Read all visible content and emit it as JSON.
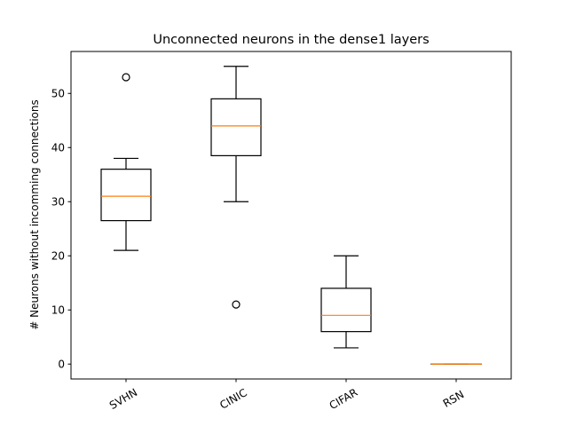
{
  "chart_data": {
    "type": "box",
    "title": "Unconnected neurons in the dense1 layers",
    "xlabel": "",
    "ylabel": "# Neurons without incomming connections",
    "categories": [
      "SVHN",
      "CINIC",
      "CIFAR",
      "RSN"
    ],
    "ylim": [
      -2.75,
      57.75
    ],
    "yticks": [
      0,
      10,
      20,
      30,
      40,
      50
    ],
    "grid": false,
    "boxes": [
      {
        "label": "SVHN",
        "whisker_low": 21,
        "q1": 26.5,
        "median": 31,
        "q3": 36,
        "whisker_high": 38,
        "outliers": [
          53
        ]
      },
      {
        "label": "CINIC",
        "whisker_low": 30,
        "q1": 38.5,
        "median": 44,
        "q3": 49,
        "whisker_high": 55,
        "outliers": [
          11
        ]
      },
      {
        "label": "CIFAR",
        "whisker_low": 3,
        "q1": 6,
        "median": 9,
        "q3": 14,
        "whisker_high": 20,
        "outliers": []
      },
      {
        "label": "RSN",
        "whisker_low": 0,
        "q1": 0,
        "median": 0,
        "q3": 0,
        "whisker_high": 0,
        "outliers": []
      }
    ],
    "colors": {
      "box": "#000000",
      "median": "#ff7f0e",
      "outlier": "#000000"
    }
  }
}
